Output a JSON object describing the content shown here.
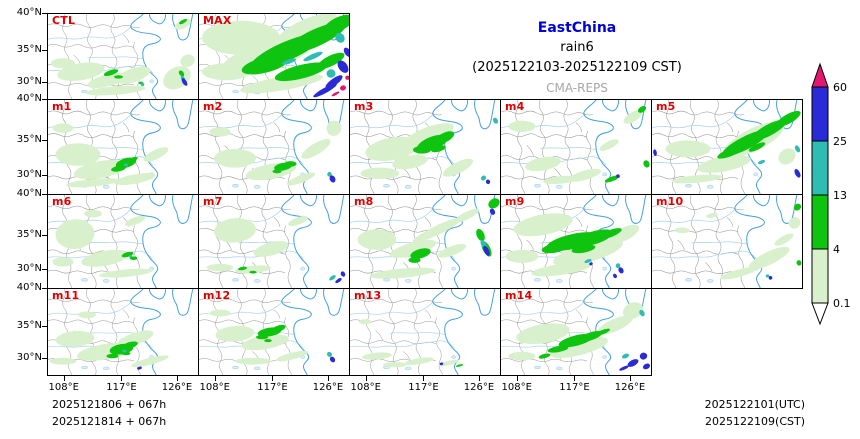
{
  "title": {
    "region": "EastChina",
    "variable": "rain6",
    "period": "(2025122103-2025122109 CST)",
    "model": "CMA-REPS"
  },
  "panels": [
    {
      "label": "CTL"
    },
    {
      "label": "MAX"
    },
    {
      "label": "m1"
    },
    {
      "label": "m2"
    },
    {
      "label": "m3"
    },
    {
      "label": "m4"
    },
    {
      "label": "m5"
    },
    {
      "label": "m6"
    },
    {
      "label": "m7"
    },
    {
      "label": "m8"
    },
    {
      "label": "m9"
    },
    {
      "label": "m10"
    },
    {
      "label": "m11"
    },
    {
      "label": "m12"
    },
    {
      "label": "m13"
    },
    {
      "label": "m14"
    }
  ],
  "axes": {
    "y_ticks": [
      "40°N",
      "35°N",
      "30°N"
    ],
    "x_ticks": [
      "108°E",
      "117°E",
      "126°E"
    ]
  },
  "colorbar": {
    "tick_labels": [
      "60",
      "25",
      "13",
      "4",
      "0.1"
    ],
    "levels": [
      {
        "label": "60",
        "color": "#e3176e"
      },
      {
        "label": "25",
        "color": "#2a2ad6"
      },
      {
        "label": "13",
        "color": "#2fbdb3"
      },
      {
        "label": "4",
        "color": "#0fc40f"
      },
      {
        "label": "0.1",
        "color": "#d8f1cc"
      }
    ]
  },
  "footer": {
    "init_lines": [
      "2025121806 + 067h",
      "2025121814 + 067h"
    ],
    "valid_lines": [
      "2025122101(UTC)",
      "2025122109(CST)"
    ]
  },
  "styles": {
    "panel_label_color": "#e00000",
    "region_title_color": "#0000dd",
    "model_name_color": "#a6a6a6",
    "coast_color": "#44a1e0",
    "river_color": "#a8d2f0",
    "province_color": "#909090"
  }
}
